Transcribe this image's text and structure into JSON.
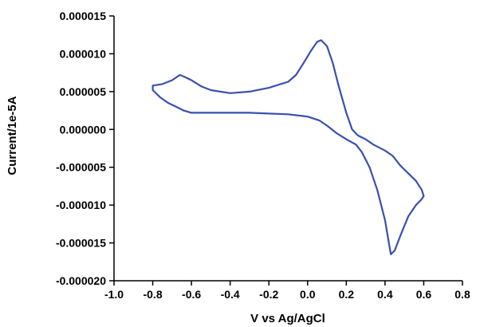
{
  "chart_data": {
    "type": "line",
    "title": "",
    "xlabel": "V vs Ag/AgCl",
    "ylabel": "Current/1e-5A",
    "xlim": [
      -1.0,
      0.8
    ],
    "ylim": [
      -2e-05,
      1.5e-05
    ],
    "x_ticks": [
      "-1.0",
      "-0.8",
      "-0.6",
      "-0.4",
      "-0.2",
      "0.0",
      "0.2",
      "0.4",
      "0.6",
      "0.8"
    ],
    "y_ticks": [
      "0.000015",
      "0.000010",
      "0.000005",
      "0.000000",
      "-0.000005",
      "-0.000010",
      "-0.000015",
      "-0.000020"
    ],
    "grid": false,
    "series_color": "#3a4fb0",
    "series": [
      {
        "points": [
          [
            -0.8,
            5.2e-06
          ],
          [
            -0.76,
            4.2e-06
          ],
          [
            -0.72,
            3.5e-06
          ],
          [
            -0.68,
            3e-06
          ],
          [
            -0.64,
            2.5e-06
          ],
          [
            -0.6,
            2.2e-06
          ],
          [
            -0.56,
            2.2e-06
          ],
          [
            -0.5,
            2.2e-06
          ],
          [
            -0.4,
            2.2e-06
          ],
          [
            -0.3,
            2.2e-06
          ],
          [
            -0.2,
            2.1e-06
          ],
          [
            -0.1,
            2e-06
          ],
          [
            0.0,
            1.7e-06
          ],
          [
            0.06,
            1.2e-06
          ],
          [
            0.1,
            5e-07
          ],
          [
            0.15,
            -5e-07
          ],
          [
            0.2,
            -1.3e-06
          ],
          [
            0.25,
            -2e-06
          ],
          [
            0.28,
            -3e-06
          ],
          [
            0.32,
            -5e-06
          ],
          [
            0.36,
            -8e-06
          ],
          [
            0.4,
            -1.2e-05
          ],
          [
            0.42,
            -1.5e-05
          ],
          [
            0.43,
            -1.65e-05
          ],
          [
            0.45,
            -1.6e-05
          ],
          [
            0.48,
            -1.4e-05
          ],
          [
            0.52,
            -1.15e-05
          ],
          [
            0.56,
            -1e-05
          ],
          [
            0.59,
            -9.2e-06
          ],
          [
            0.6,
            -8.8e-06
          ],
          [
            0.59,
            -8e-06
          ],
          [
            0.56,
            -6.8e-06
          ],
          [
            0.52,
            -5.8e-06
          ],
          [
            0.48,
            -4.8e-06
          ],
          [
            0.44,
            -3.5e-06
          ],
          [
            0.4,
            -2.8e-06
          ],
          [
            0.34,
            -2e-06
          ],
          [
            0.3,
            -1.3e-06
          ],
          [
            0.26,
            -8e-07
          ],
          [
            0.23,
            0.0
          ],
          [
            0.2,
            2.2e-06
          ],
          [
            0.16,
            5.8e-06
          ],
          [
            0.13,
            8.8e-06
          ],
          [
            0.1,
            1.1e-05
          ],
          [
            0.07,
            1.18e-05
          ],
          [
            0.05,
            1.16e-05
          ],
          [
            0.02,
            1.05e-05
          ],
          [
            -0.02,
            8.8e-06
          ],
          [
            -0.06,
            7.2e-06
          ],
          [
            -0.1,
            6.3e-06
          ],
          [
            -0.2,
            5.5e-06
          ],
          [
            -0.3,
            5e-06
          ],
          [
            -0.4,
            4.8e-06
          ],
          [
            -0.5,
            5.2e-06
          ],
          [
            -0.55,
            5.7e-06
          ],
          [
            -0.6,
            6.5e-06
          ],
          [
            -0.64,
            7e-06
          ],
          [
            -0.66,
            7.2e-06
          ],
          [
            -0.7,
            6.5e-06
          ],
          [
            -0.75,
            6e-06
          ],
          [
            -0.8,
            5.8e-06
          ],
          [
            -0.8,
            5.2e-06
          ]
        ]
      }
    ]
  }
}
